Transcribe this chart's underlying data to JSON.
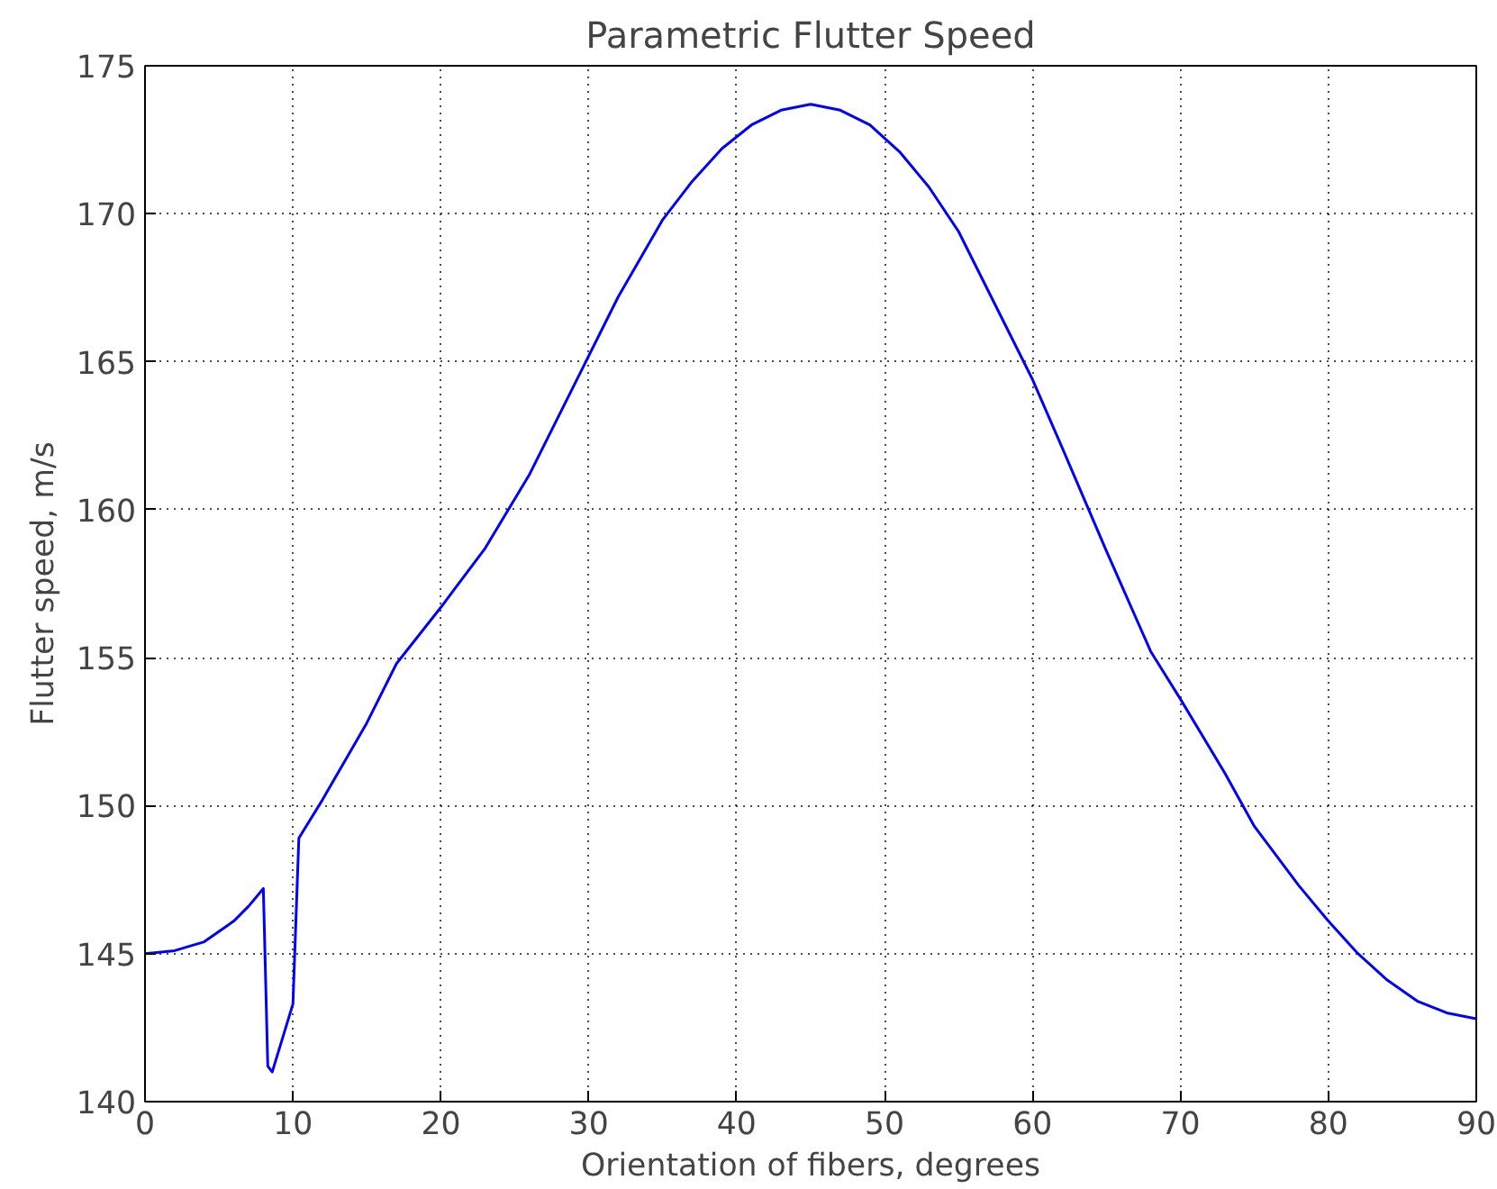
{
  "chart_data": {
    "type": "line",
    "title": "Parametric Flutter Speed",
    "xlabel": "Orientation of fibers, degrees",
    "ylabel": "Flutter speed, m/s",
    "x": [
      0,
      2,
      4,
      6,
      7,
      8,
      8.3,
      8.6,
      10,
      10.4,
      12,
      15,
      17,
      20,
      23,
      26,
      29,
      32,
      35,
      37,
      39,
      41,
      43,
      45,
      47,
      49,
      51,
      53,
      55,
      57,
      60,
      62,
      65,
      68,
      70,
      73,
      75,
      78,
      80,
      82,
      84,
      86,
      88,
      90
    ],
    "series": [
      {
        "color": "#0000ff",
        "values": [
          145,
          145.1,
          145.4,
          146.1,
          146.6,
          147.2,
          141.2,
          141.0,
          143.3,
          148.9,
          150.2,
          152.8,
          154.8,
          156.7,
          158.7,
          161.2,
          164.2,
          167.2,
          169.8,
          171.1,
          172.2,
          173.0,
          173.5,
          173.7,
          173.5,
          173.0,
          172.1,
          170.9,
          169.4,
          167.4,
          164.4,
          162.1,
          158.6,
          155.2,
          153.6,
          151.1,
          149.3,
          147.3,
          146.1,
          145.0,
          144.1,
          143.4,
          143.0,
          142.8
        ]
      }
    ],
    "xlim": [
      0,
      90
    ],
    "ylim": [
      140,
      175
    ],
    "xticks": [
      0,
      10,
      20,
      30,
      40,
      50,
      60,
      70,
      80,
      90
    ],
    "yticks": [
      140,
      145,
      150,
      155,
      160,
      165,
      170,
      175
    ],
    "grid": true,
    "line_style": "solid",
    "marker": "none"
  }
}
